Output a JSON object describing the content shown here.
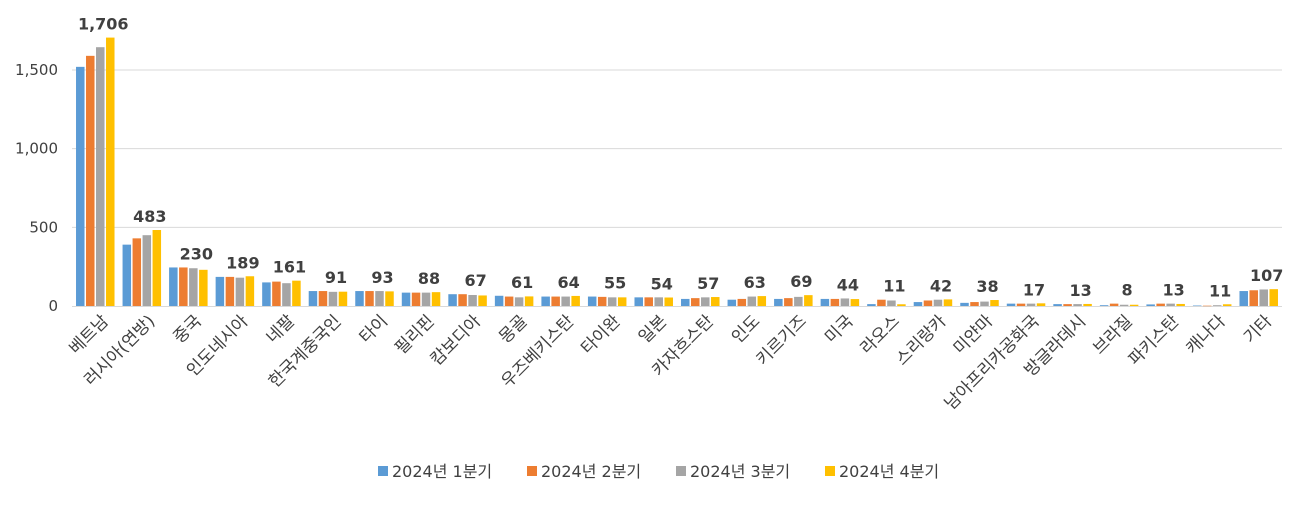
{
  "colors": {
    "q1": "#5B9BD5",
    "q2": "#ED7D31",
    "q3": "#A5A5A5",
    "q4": "#FFC000",
    "grid": "#D9D9D9",
    "text": "#404040"
  },
  "chart_data": {
    "type": "bar",
    "title": "",
    "xlabel": "",
    "ylabel": "",
    "ylim": [
      0,
      1800
    ],
    "yticks": [
      0,
      500,
      1000,
      1500
    ],
    "ytick_labels": [
      "0",
      "500",
      "1,000",
      "1,500"
    ],
    "grid": true,
    "legend_position": "bottom",
    "categories": [
      "베트남",
      "러시아(연방)",
      "중국",
      "인도네시아",
      "네팔",
      "한국계중국인",
      "타이",
      "필리핀",
      "캄보디아",
      "몽골",
      "우즈베키스탄",
      "타이완",
      "일본",
      "카자흐스탄",
      "인도",
      "키르기즈",
      "미국",
      "라오스",
      "스리랑카",
      "미얀마",
      "남아프리카공화국",
      "방글라데시",
      "브라질",
      "파키스탄",
      "캐나다",
      "기타"
    ],
    "series": [
      {
        "name": "2024년 1분기",
        "values": [
          1520,
          390,
          245,
          185,
          150,
          95,
          95,
          85,
          75,
          65,
          60,
          60,
          55,
          45,
          40,
          45,
          45,
          12,
          25,
          20,
          15,
          12,
          5,
          10,
          3,
          95
        ]
      },
      {
        "name": "2024년 2분기",
        "values": [
          1590,
          430,
          245,
          185,
          155,
          95,
          95,
          85,
          75,
          60,
          60,
          58,
          55,
          50,
          45,
          50,
          45,
          40,
          35,
          25,
          15,
          12,
          15,
          15,
          2,
          100
        ]
      },
      {
        "name": "2024년 3분기",
        "values": [
          1645,
          450,
          240,
          180,
          145,
          90,
          95,
          85,
          70,
          55,
          60,
          55,
          55,
          55,
          60,
          58,
          48,
          35,
          40,
          28,
          15,
          12,
          8,
          15,
          5,
          105
        ]
      },
      {
        "name": "2024년 4분기",
        "values": [
          1706,
          483,
          230,
          189,
          161,
          91,
          93,
          88,
          67,
          61,
          64,
          55,
          54,
          57,
          63,
          69,
          44,
          11,
          42,
          38,
          17,
          13,
          8,
          13,
          11,
          107
        ]
      }
    ],
    "data_labels": [
      "1,706",
      "483",
      "230",
      "189",
      "161",
      "91",
      "93",
      "88",
      "67",
      "61",
      "64",
      "55",
      "54",
      "57",
      "63",
      "69",
      "44",
      "11",
      "42",
      "38",
      "17",
      "13",
      "8",
      "13",
      "11",
      "107"
    ],
    "data_label_series": "2024년 4분기"
  }
}
